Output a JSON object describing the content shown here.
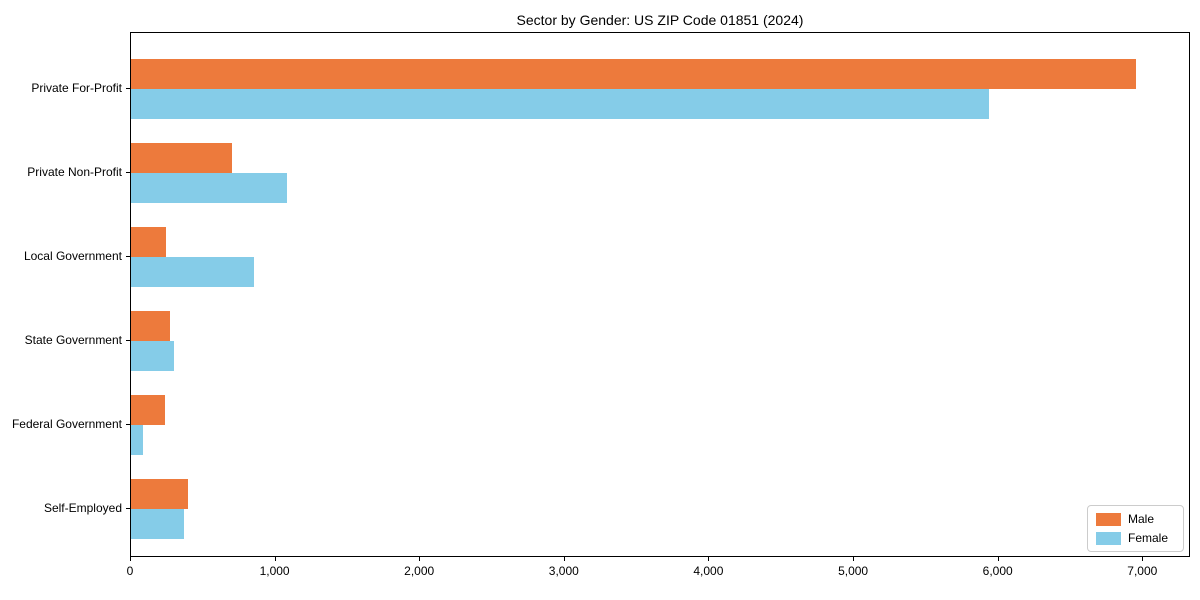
{
  "chart_data": {
    "type": "bar",
    "orientation": "horizontal",
    "title": "Sector by Gender: US ZIP Code 01851 (2024)",
    "categories": [
      "Private For-Profit",
      "Private Non-Profit",
      "Local Government",
      "State Government",
      "Federal Government",
      "Self-Employed"
    ],
    "series": [
      {
        "name": "Male",
        "color": "#ed7a3c",
        "values": [
          6950,
          700,
          245,
          270,
          235,
          395
        ]
      },
      {
        "name": "Female",
        "color": "#85cce8",
        "values": [
          5930,
          1075,
          850,
          295,
          80,
          365
        ]
      }
    ],
    "xlim": [
      0,
      7330
    ],
    "x_ticks": [
      0,
      1000,
      2000,
      3000,
      4000,
      5000,
      6000,
      7000
    ],
    "x_tick_labels": [
      "0",
      "1,000",
      "2,000",
      "3,000",
      "4,000",
      "5,000",
      "6,000",
      "7,000"
    ],
    "xlabel": "",
    "ylabel": "",
    "grid": false,
    "legend_position": "lower right",
    "colors": {
      "male": "#ed7a3c",
      "female": "#85cce8",
      "spine": "#000000",
      "legend_border": "#cccccc"
    }
  }
}
